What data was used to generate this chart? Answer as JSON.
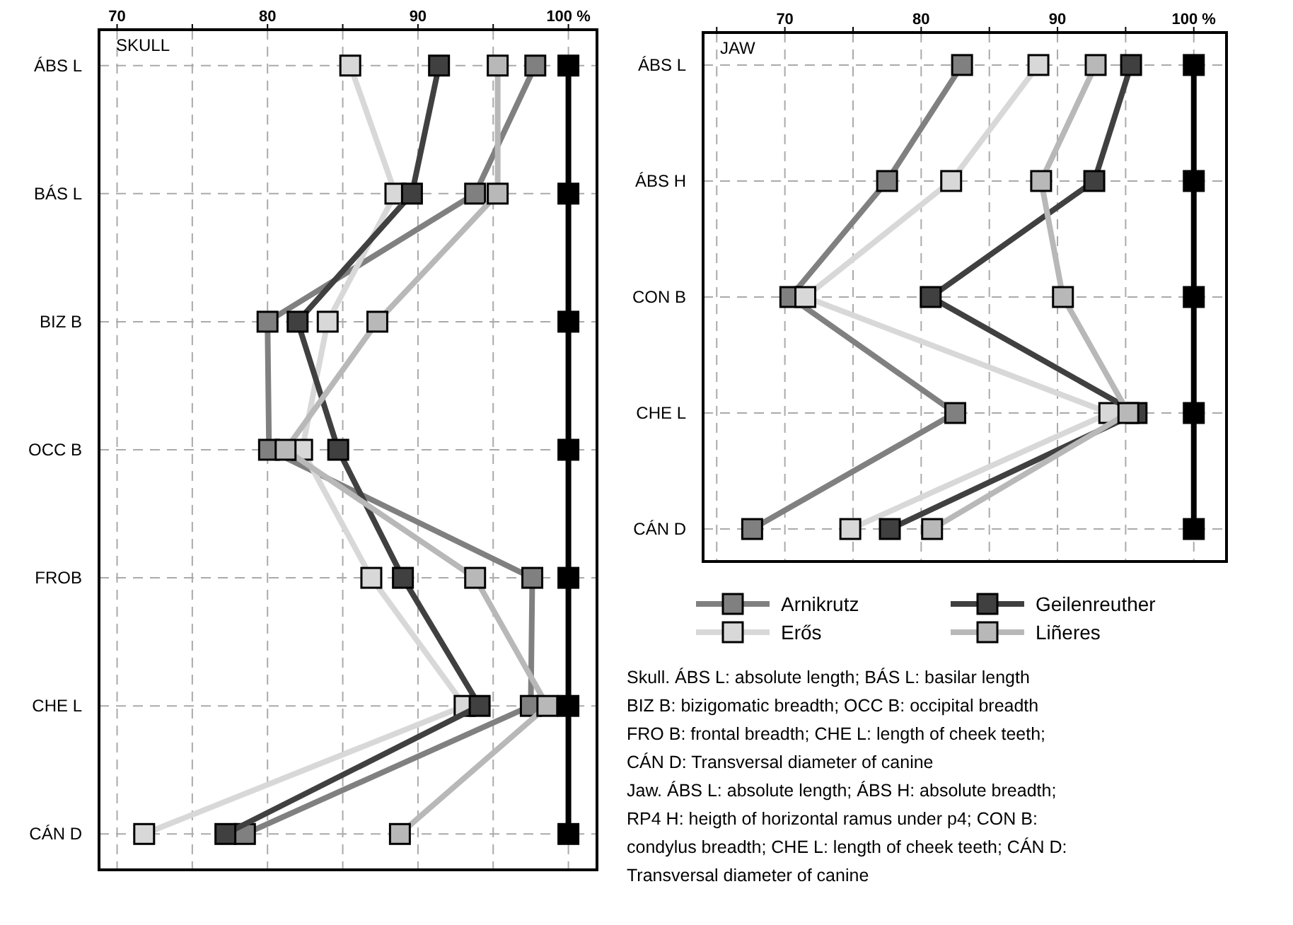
{
  "chart_data": [
    {
      "type": "line",
      "orientation": "horizontal",
      "title": "SKULL",
      "categories": [
        "ÁBS L",
        "BÁS L",
        "BIZ B",
        "OCC B",
        "FROB",
        "CHE L",
        "CÁN D"
      ],
      "xlim": [
        68.8,
        101.9
      ],
      "xticks": [
        70,
        {
          "value": 75,
          "label": null
        },
        80,
        {
          "value": 85,
          "label": null
        },
        90,
        {
          "value": 95,
          "label": null
        },
        {
          "value": 100,
          "label": "100 %"
        }
      ],
      "grid": true,
      "marker": "square",
      "line_style": "solid",
      "series": [
        {
          "color": "#808080",
          "values": [
            97.8,
            93.8,
            80.0,
            80.1,
            97.6,
            97.5,
            78.5
          ]
        },
        {
          "color": "#d8d8d8",
          "values": [
            85.5,
            88.5,
            84.0,
            82.3,
            86.9,
            93.1,
            71.8
          ]
        },
        {
          "color": "#404040",
          "values": [
            91.4,
            89.6,
            82.0,
            84.7,
            89.0,
            94.1,
            77.2
          ]
        },
        {
          "color": "#b8b8b8",
          "values": [
            95.3,
            95.3,
            87.3,
            81.2,
            93.8,
            98.6,
            88.8
          ]
        },
        {
          "color": "#000000",
          "values": [
            100,
            100,
            100,
            100,
            100,
            100,
            100
          ]
        }
      ]
    },
    {
      "type": "line",
      "orientation": "horizontal",
      "title": "JAW",
      "categories": [
        "ÁBS L",
        "ÁBS H",
        "CON B",
        "CHE L",
        "CÁN D"
      ],
      "xlim": [
        64.0,
        102.4
      ],
      "xticks": [
        {
          "value": 65,
          "label": null
        },
        70,
        {
          "value": 75,
          "label": null
        },
        80,
        {
          "value": 85,
          "label": null
        },
        90,
        {
          "value": 95,
          "label": null
        },
        {
          "value": 100,
          "label": "100 %"
        }
      ],
      "grid": true,
      "marker": "square",
      "line_style": "solid",
      "legend": "bottom",
      "series": [
        {
          "name": "Arnikrutz",
          "color": "#808080",
          "values": [
            83.0,
            77.5,
            70.4,
            82.5,
            67.6
          ]
        },
        {
          "name": "Erős",
          "color": "#d8d8d8",
          "values": [
            88.6,
            82.2,
            71.5,
            93.8,
            74.8
          ]
        },
        {
          "name": "Geilenreuther",
          "color": "#404040",
          "values": [
            95.4,
            92.7,
            80.7,
            95.8,
            77.7
          ]
        },
        {
          "name": "Liñeres",
          "color": "#b8b8b8",
          "values": [
            92.8,
            88.8,
            90.4,
            95.2,
            80.8
          ]
        },
        {
          "color": "#000000",
          "values": [
            100,
            100,
            100,
            100,
            100
          ]
        }
      ],
      "annotations": [
        "Skull. ÁBS L: absolute length; BÁS L: basilar length",
        "BIZ B: bizigomatic breadth; OCC B: occipital breadth",
        "FRO B: frontal breadth; CHE L: length of cheek teeth;",
        "CÁN D: Transversal diameter of canine",
        "Jaw. ÁBS L: absolute length; ÁBS H: absolute breadth;",
        "RP4 H: heigth of horizontal ramus under p4; CON B:",
        "condylus breadth; CHE L: length of cheek teeth; CÁN D:",
        "Transversal diameter of canine"
      ]
    }
  ]
}
